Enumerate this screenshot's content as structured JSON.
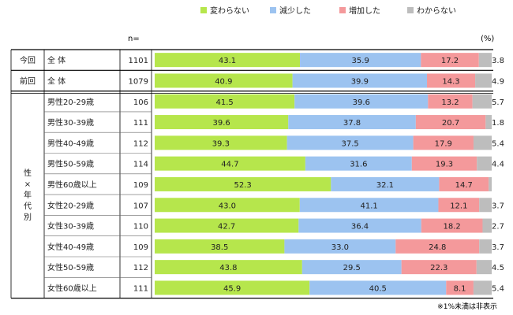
{
  "chart_data": {
    "type": "bar",
    "stacked": true,
    "horizontal": true,
    "unit_label": "(%)",
    "n_header": "n=",
    "note": "※1%未満は非表示",
    "legend": [
      {
        "name": "変わらない",
        "color": "#b6e64c"
      },
      {
        "name": "減少した",
        "color": "#9cc3f0"
      },
      {
        "name": "増加した",
        "color": "#f4999b"
      },
      {
        "name": "わからない",
        "color": "#bdbdbd"
      }
    ],
    "groups": [
      {
        "label": "今回",
        "rows": [
          0
        ]
      },
      {
        "label": "前回",
        "rows": [
          1
        ]
      },
      {
        "label": "性×年代別",
        "rows": [
          2,
          3,
          4,
          5,
          6,
          7,
          8,
          9,
          10,
          11
        ]
      }
    ],
    "rows": [
      {
        "label": "全 体",
        "n": "1101",
        "values": [
          43.1,
          35.9,
          17.2,
          3.8
        ]
      },
      {
        "label": "全 体",
        "n": "1079",
        "values": [
          40.9,
          39.9,
          14.3,
          4.9
        ]
      },
      {
        "label": "男性20-29歳",
        "n": "106",
        "values": [
          41.5,
          39.6,
          13.2,
          5.7
        ]
      },
      {
        "label": "男性30-39歳",
        "n": "111",
        "values": [
          39.6,
          37.8,
          20.7,
          1.8
        ]
      },
      {
        "label": "男性40-49歳",
        "n": "112",
        "values": [
          39.3,
          37.5,
          17.9,
          5.4
        ]
      },
      {
        "label": "男性50-59歳",
        "n": "114",
        "values": [
          44.7,
          31.6,
          19.3,
          4.4
        ]
      },
      {
        "label": "男性60歳以上",
        "n": "109",
        "values": [
          52.3,
          32.1,
          14.7,
          0.9
        ]
      },
      {
        "label": "女性20-29歳",
        "n": "107",
        "values": [
          43.0,
          41.1,
          12.1,
          3.7
        ]
      },
      {
        "label": "女性30-39歳",
        "n": "110",
        "values": [
          42.7,
          36.4,
          18.2,
          2.7
        ]
      },
      {
        "label": "女性40-49歳",
        "n": "109",
        "values": [
          38.5,
          33.0,
          24.8,
          3.7
        ]
      },
      {
        "label": "女性50-59歳",
        "n": "112",
        "values": [
          43.8,
          29.5,
          22.3,
          4.5
        ]
      },
      {
        "label": "女性60歳以上",
        "n": "111",
        "values": [
          45.9,
          40.5,
          8.1,
          5.4
        ]
      }
    ],
    "xlim": [
      0,
      100
    ]
  }
}
